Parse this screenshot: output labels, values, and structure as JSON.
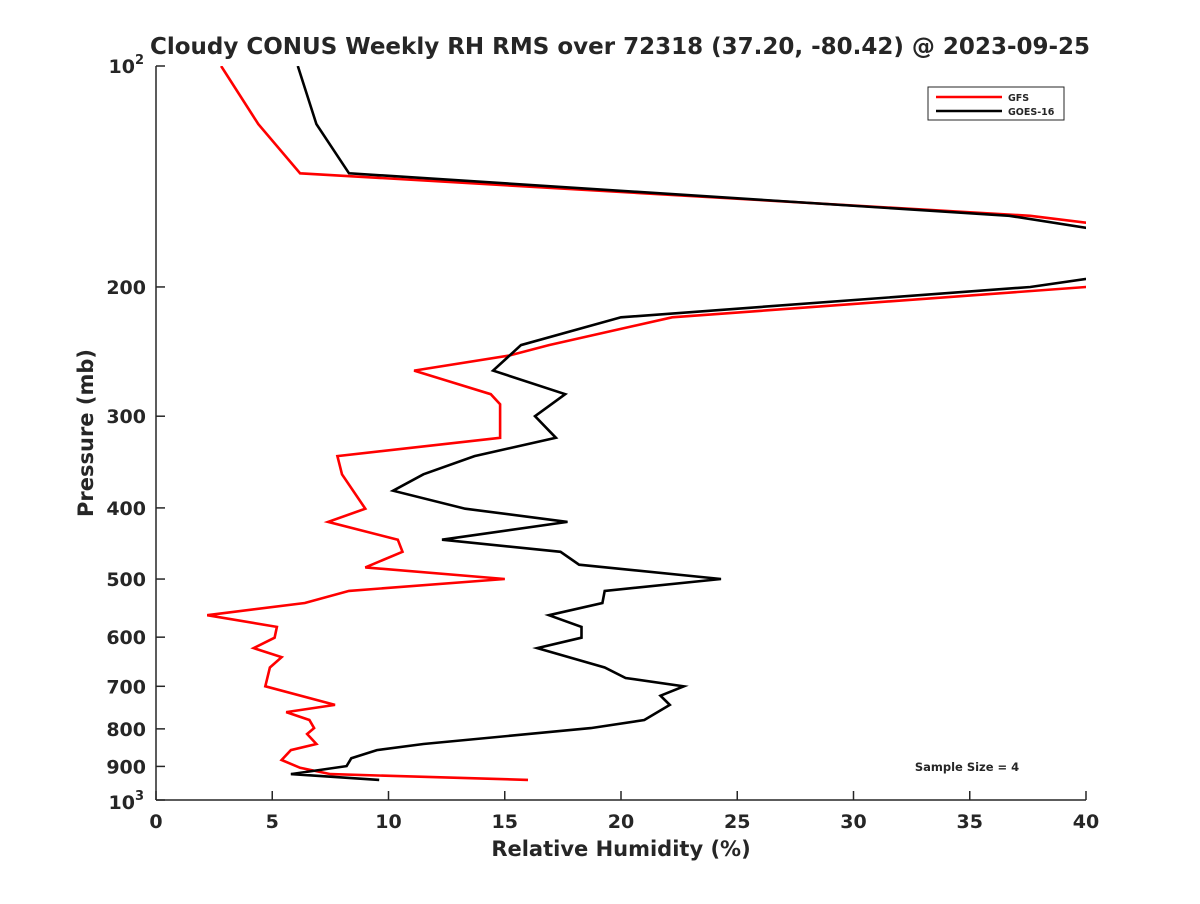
{
  "chart_data": {
    "type": "line",
    "title": "Cloudy CONUS Weekly RH RMS over 72318 (37.20, -80.42) @ 2023-09-25",
    "xlabel": "Relative Humidity (%)",
    "ylabel": "Pressure (mb)",
    "xlim": [
      0,
      40
    ],
    "ylim": [
      1000,
      100
    ],
    "yscale": "log",
    "y_reversed": true,
    "grid": false,
    "legend_position": "top-right",
    "xticks": [
      "0",
      "5",
      "10",
      "15",
      "20",
      "25",
      "30",
      "35",
      "40"
    ],
    "xtick_values": [
      0,
      5,
      10,
      15,
      20,
      25,
      30,
      35,
      40
    ],
    "yticks": [
      {
        "value": 100,
        "base": "10",
        "exp": "2"
      },
      {
        "value": 200,
        "label": "200"
      },
      {
        "value": 300,
        "label": "300"
      },
      {
        "value": 400,
        "label": "400"
      },
      {
        "value": 500,
        "label": "500"
      },
      {
        "value": 600,
        "label": "600"
      },
      {
        "value": 700,
        "label": "700"
      },
      {
        "value": 800,
        "label": "800"
      },
      {
        "value": 900,
        "label": "900"
      },
      {
        "value": 1000,
        "base": "10",
        "exp": "3"
      }
    ],
    "annotation": "Sample Size = 4",
    "series": [
      {
        "name": "GFS",
        "color": "#ff0000",
        "points": [
          [
            2.8,
            100
          ],
          [
            4.4,
            120
          ],
          [
            6.2,
            140
          ],
          [
            37.6,
            160
          ],
          [
            41,
            165
          ],
          null,
          [
            41,
            199
          ],
          [
            40,
            200
          ],
          [
            22.2,
            220
          ],
          [
            16.9,
            240
          ],
          [
            15.2,
            248
          ],
          [
            11.1,
            260
          ],
          [
            14.4,
            280
          ],
          [
            14.8,
            289
          ],
          [
            14.8,
            321
          ],
          [
            7.8,
            340
          ],
          [
            8.0,
            360
          ],
          [
            9.0,
            401
          ],
          [
            7.4,
            418
          ],
          [
            10.4,
            442
          ],
          [
            10.6,
            459
          ],
          [
            9.0,
            482
          ],
          [
            15.0,
            500
          ],
          [
            8.3,
            519
          ],
          [
            6.4,
            539
          ],
          [
            2.2,
            560
          ],
          [
            5.2,
            581
          ],
          [
            5.1,
            601
          ],
          [
            4.2,
            621
          ],
          [
            5.4,
            639
          ],
          [
            4.9,
            660
          ],
          [
            4.7,
            700
          ],
          [
            7.7,
            742
          ],
          [
            5.6,
            759
          ],
          [
            6.6,
            778
          ],
          [
            6.8,
            798
          ],
          [
            6.5,
            813
          ],
          [
            6.9,
            839
          ],
          [
            5.8,
            855
          ],
          [
            5.4,
            882
          ],
          [
            6.2,
            904
          ],
          [
            7.5,
            922
          ],
          [
            16.0,
            939
          ]
        ]
      },
      {
        "name": "GOES-16",
        "color": "#000000",
        "points": [
          [
            6.1,
            100
          ],
          [
            6.9,
            120
          ],
          [
            8.3,
            140
          ],
          [
            36.7,
            160
          ],
          [
            41,
            168
          ],
          null,
          [
            41,
            193
          ],
          [
            37.6,
            200
          ],
          [
            20.0,
            220
          ],
          [
            15.7,
            240
          ],
          [
            14.5,
            260
          ],
          [
            17.6,
            280
          ],
          [
            16.3,
            300
          ],
          [
            17.2,
            321
          ],
          [
            13.7,
            340
          ],
          [
            11.5,
            360
          ],
          [
            10.2,
            379
          ],
          [
            13.3,
            401
          ],
          [
            17.7,
            418
          ],
          [
            12.3,
            442
          ],
          [
            17.4,
            459
          ],
          [
            18.2,
            478
          ],
          [
            24.3,
            500
          ],
          [
            19.3,
            519
          ],
          [
            19.2,
            539
          ],
          [
            16.9,
            560
          ],
          [
            18.3,
            581
          ],
          [
            18.3,
            601
          ],
          [
            16.4,
            621
          ],
          [
            19.3,
            660
          ],
          [
            20.2,
            682
          ],
          [
            22.7,
            700
          ],
          [
            21.7,
            721
          ],
          [
            22.1,
            742
          ],
          [
            21.0,
            778
          ],
          [
            18.7,
            798
          ],
          [
            11.5,
            839
          ],
          [
            9.5,
            855
          ],
          [
            8.4,
            877
          ],
          [
            8.2,
            899
          ],
          [
            5.8,
            922
          ],
          [
            9.6,
            939
          ]
        ]
      }
    ]
  }
}
